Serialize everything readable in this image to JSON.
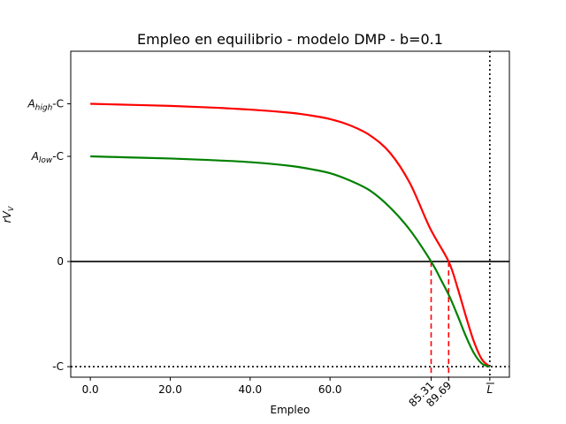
{
  "chart_data": {
    "type": "line",
    "title": "Empleo en equilibrio - modelo DMP - b=0.1",
    "xlabel": "Empleo",
    "ylabel_main": "rV",
    "ylabel_sub": "V",
    "xlim": [
      -4.9,
      104.9
    ],
    "ylim": [
      -1.1,
      2.0
    ],
    "x_ticks": [
      {
        "value": 0,
        "label": "0.0"
      },
      {
        "value": 20,
        "label": "20.0"
      },
      {
        "value": 40,
        "label": "40.0"
      },
      {
        "value": 60,
        "label": "60.0"
      },
      {
        "value": 85.31,
        "label": "85.31",
        "rotated": true
      },
      {
        "value": 89.69,
        "label": "89.69",
        "rotated": true
      },
      {
        "value": 100,
        "label": "L",
        "overbar": true
      }
    ],
    "y_ticks": [
      {
        "value": 1.5,
        "main": "A",
        "sub": "high",
        "suffix": "-C"
      },
      {
        "value": 1.0,
        "main": "A",
        "sub": "low",
        "suffix": "-C"
      },
      {
        "value": 0,
        "main": "0",
        "sub": "",
        "suffix": ""
      },
      {
        "value": -1,
        "main": "-C",
        "sub": "",
        "suffix": ""
      }
    ],
    "series": [
      {
        "color": "#ff0000",
        "x": [
          0,
          10,
          20,
          30,
          40,
          50,
          55,
          60,
          65,
          70,
          75,
          80,
          85,
          89.69,
          92,
          94,
          96,
          98,
          100
        ],
        "y": [
          1.5,
          1.49,
          1.48,
          1.465,
          1.445,
          1.415,
          1.39,
          1.355,
          1.295,
          1.2,
          1.035,
          0.745,
          0.32,
          0,
          -0.26,
          -0.52,
          -0.76,
          -0.93,
          -1.0
        ]
      },
      {
        "color": "#008000",
        "x": [
          0,
          10,
          20,
          30,
          40,
          50,
          55,
          60,
          65,
          70,
          75,
          80,
          85.31,
          88,
          90,
          92,
          94,
          96,
          98,
          100
        ],
        "y": [
          1.0,
          0.99,
          0.98,
          0.965,
          0.945,
          0.91,
          0.88,
          0.84,
          0.77,
          0.675,
          0.515,
          0.3,
          0,
          -0.19,
          -0.34,
          -0.52,
          -0.71,
          -0.87,
          -0.97,
          -1.0
        ]
      }
    ],
    "reference_lines": {
      "zero_line": {
        "y": 0,
        "color": "#000000",
        "style": "solid"
      },
      "floor_line": {
        "y": -1,
        "color": "#000000",
        "style": "dotted"
      },
      "limit_line": {
        "x": 100,
        "color": "#000000",
        "style": "dotted"
      },
      "equilibrium_drops": [
        {
          "x": 85.31,
          "color": "#ff0000",
          "style": "dashed"
        },
        {
          "x": 89.69,
          "color": "#ff0000",
          "style": "dashed"
        }
      ]
    }
  }
}
